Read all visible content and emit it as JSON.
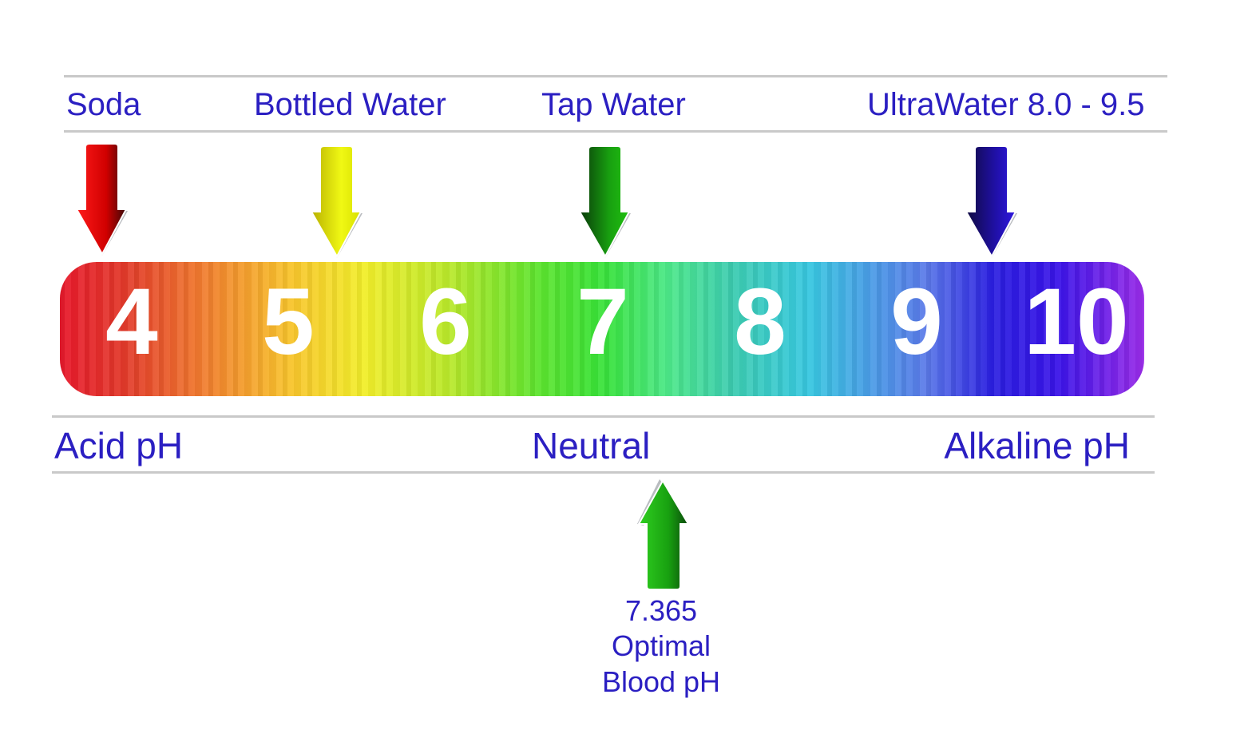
{
  "sources": [
    {
      "label": "Soda",
      "ph": 4,
      "arrow_color": "#e8141c"
    },
    {
      "label": "Bottled Water",
      "ph": 5.3,
      "arrow_color": "#e8f014"
    },
    {
      "label": "Tap Water",
      "ph": 7,
      "arrow_color": "#18b010"
    },
    {
      "label": "UltraWater 8.0 - 9.5",
      "ph": 9.5,
      "arrow_color": "#2a14c8"
    }
  ],
  "scale": {
    "numbers": [
      "4",
      "5",
      "6",
      "7",
      "8",
      "9",
      "10"
    ]
  },
  "categories": {
    "acid": "Acid pH",
    "neutral": "Neutral",
    "alkaline": "Alkaline pH"
  },
  "blood": {
    "value": "7.365",
    "line1": "Optimal",
    "line2": "Blood pH",
    "arrow_color": "#18b010"
  },
  "colors": {
    "text": "#2b1fc2",
    "rule": "#c9c9c9"
  }
}
